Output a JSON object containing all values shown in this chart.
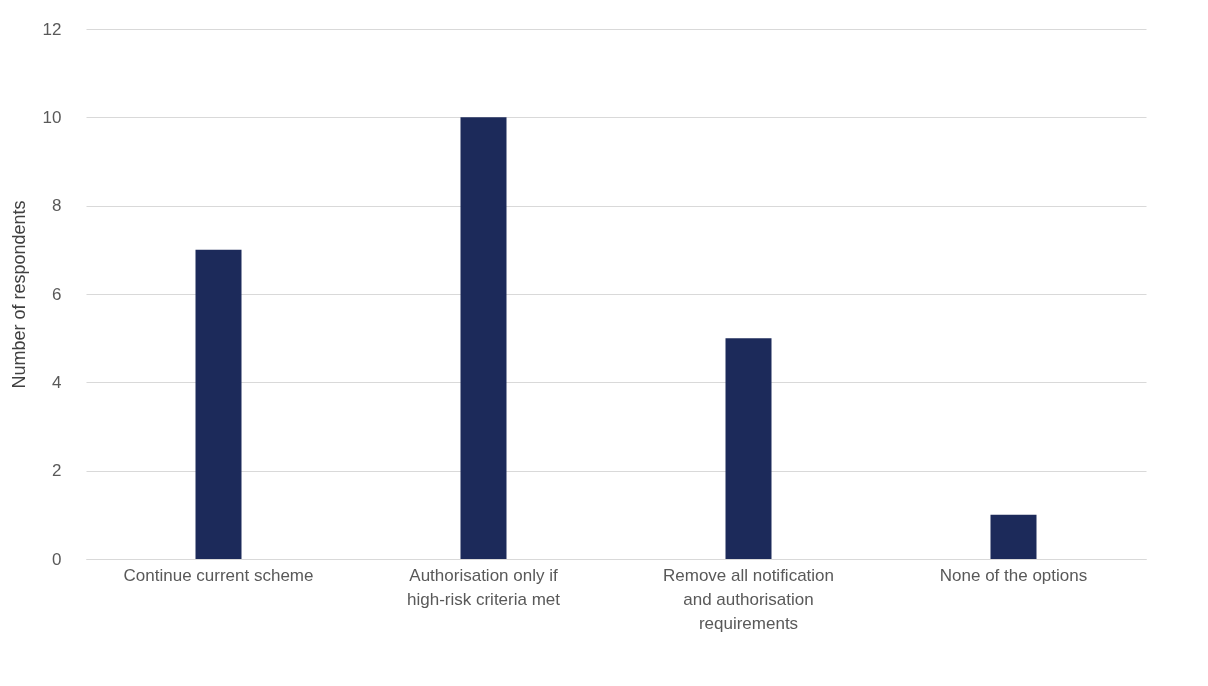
{
  "chart_data": {
    "type": "bar",
    "ylabel": "Number of respondents",
    "categories": [
      "Continue current scheme",
      "Authorisation only if high-risk criteria met",
      "Remove all notification and authorisation requirements",
      "None of the options"
    ],
    "values": [
      7,
      10,
      5,
      1
    ],
    "color": "#1c2a5a",
    "ylim": [
      0,
      12
    ],
    "yticks": [
      0,
      2,
      4,
      6,
      8,
      10,
      12
    ],
    "grid": "y"
  }
}
